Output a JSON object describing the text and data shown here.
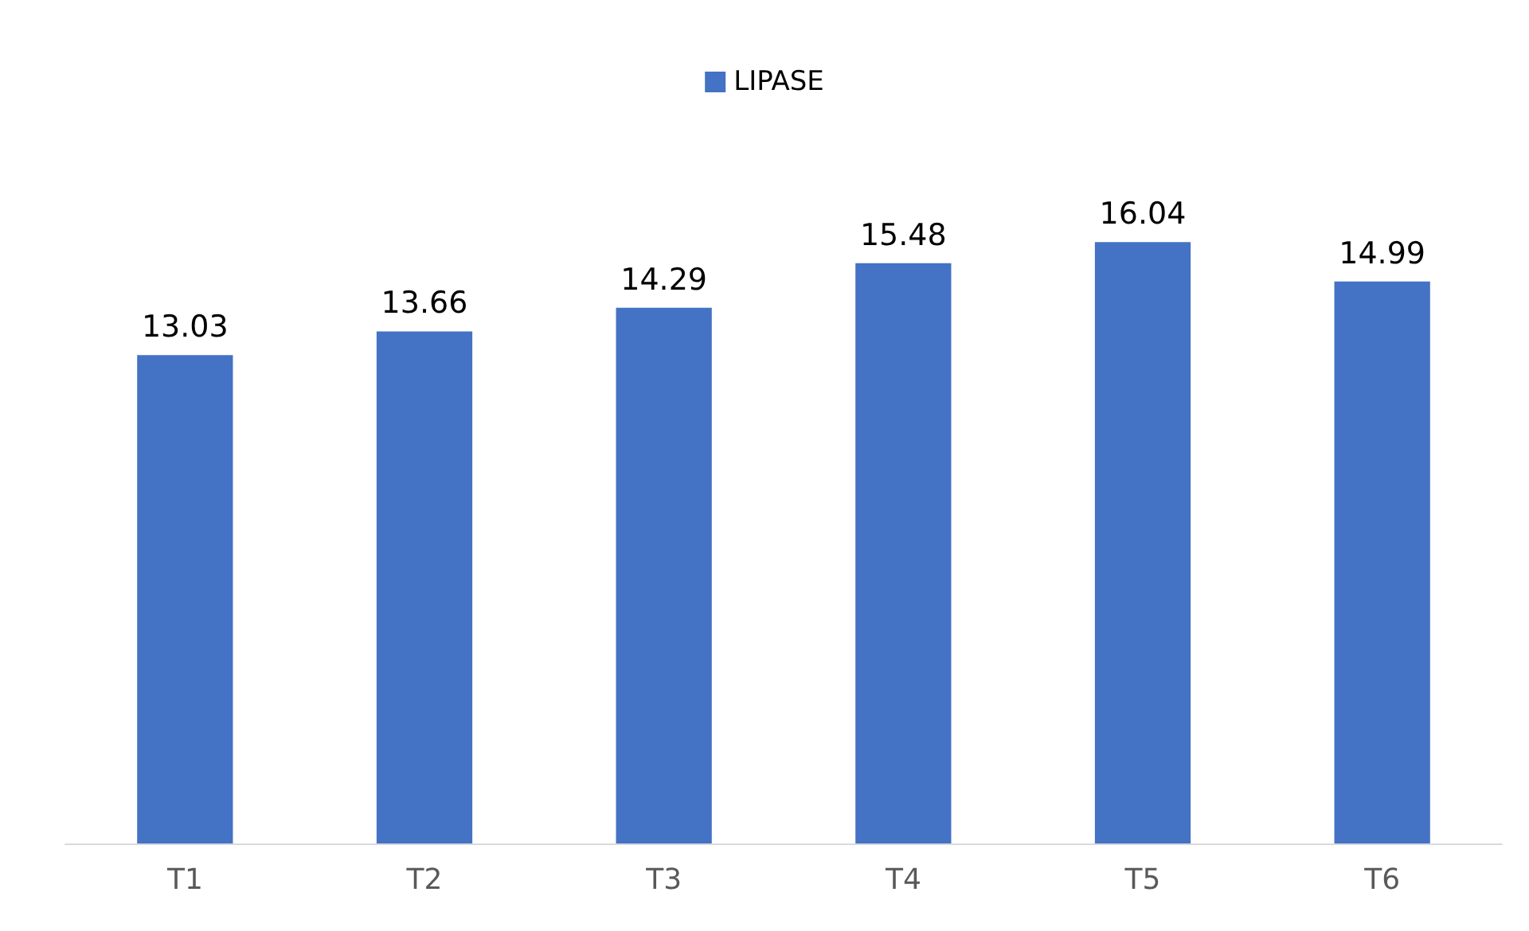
{
  "chart_data": {
    "type": "bar",
    "categories": [
      "T1",
      "T2",
      "T3",
      "T4",
      "T5",
      "T6"
    ],
    "series": [
      {
        "name": "LIPASE",
        "color": "#4472c4",
        "values": [
          13.03,
          13.66,
          14.29,
          15.48,
          16.04,
          14.99
        ]
      }
    ],
    "tick_labels": "x",
    "grid": false,
    "legend": "top",
    "data_labels": true
  }
}
